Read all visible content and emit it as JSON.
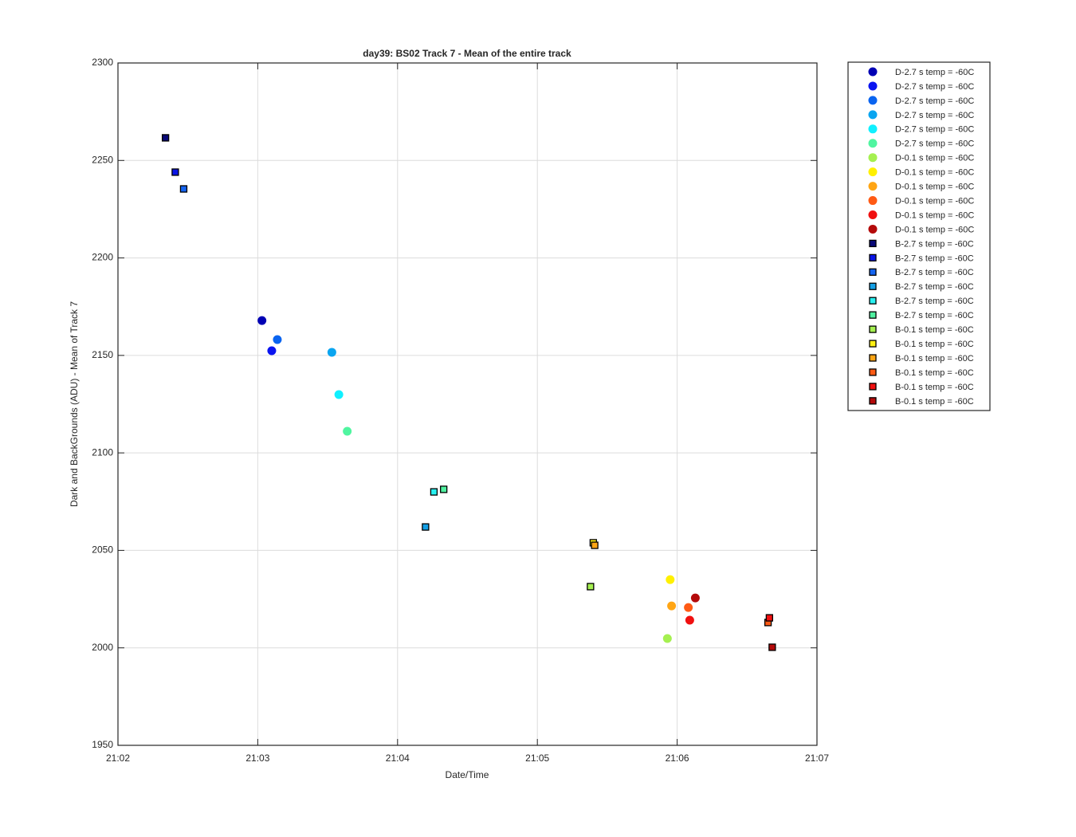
{
  "chart_data": {
    "type": "scatter",
    "title": "day39: BS02  Track 7 - Mean of the entire track",
    "x_label": "Date/Time",
    "y_label": "Dark and BackGrounds (ADU) - Mean of Track 7",
    "xlim": [
      1262,
      1267
    ],
    "xticks": [
      {
        "value": 1262,
        "label": "21:02"
      },
      {
        "value": 1263,
        "label": "21:03"
      },
      {
        "value": 1264,
        "label": "21:04"
      },
      {
        "value": 1265,
        "label": "21:05"
      },
      {
        "value": 1266,
        "label": "21:06"
      },
      {
        "value": 1267,
        "label": "21:07"
      }
    ],
    "ylim": [
      1950,
      2300
    ],
    "yticks": [
      1950,
      2000,
      2050,
      2100,
      2150,
      2200,
      2250,
      2300
    ],
    "grid": true,
    "legend": "outside-right",
    "series": [
      {
        "name": "D-2.7 s temp = -60C",
        "marker": "circle",
        "color": "#0000b4",
        "x": [
          1263.03
        ],
        "values": [
          2167.9
        ]
      },
      {
        "name": "D-2.7 s temp = -60C",
        "marker": "circle",
        "color": "#0a14f0",
        "x": [
          1263.1
        ],
        "values": [
          2152.4
        ]
      },
      {
        "name": "D-2.7 s temp = -60C",
        "marker": "circle",
        "color": "#0a64f0",
        "x": [
          1263.14
        ],
        "values": [
          2158.1
        ]
      },
      {
        "name": "D-2.7 s temp = -60C",
        "marker": "circle",
        "color": "#0aa5f0",
        "x": [
          1263.53
        ],
        "values": [
          2151.6
        ]
      },
      {
        "name": "D-2.7 s temp = -60C",
        "marker": "circle",
        "color": "#10f0ff",
        "x": [
          1263.58
        ],
        "values": [
          2129.9
        ]
      },
      {
        "name": "D-2.7 s temp = -60C",
        "marker": "circle",
        "color": "#50f5a0",
        "x": [
          1263.64
        ],
        "values": [
          2111.1
        ]
      },
      {
        "name": "D-0.1 s temp = -60C",
        "marker": "circle",
        "color": "#a5f050",
        "x": [
          1265.93
        ],
        "values": [
          2004.8
        ]
      },
      {
        "name": "D-0.1 s temp = -60C",
        "marker": "circle",
        "color": "#fff000",
        "x": [
          1265.95
        ],
        "values": [
          2035.0
        ]
      },
      {
        "name": "D-0.1 s temp = -60C",
        "marker": "circle",
        "color": "#ffa514",
        "x": [
          1265.96
        ],
        "values": [
          2021.5
        ]
      },
      {
        "name": "D-0.1 s temp = -60C",
        "marker": "circle",
        "color": "#ff5a14",
        "x": [
          1266.08
        ],
        "values": [
          2020.7
        ]
      },
      {
        "name": "D-0.1 s temp = -60C",
        "marker": "circle",
        "color": "#f01010",
        "x": [
          1266.09
        ],
        "values": [
          2014.2
        ]
      },
      {
        "name": "D-0.1 s temp = -60C",
        "marker": "circle",
        "color": "#b40a0a",
        "x": [
          1266.13
        ],
        "values": [
          2025.6
        ]
      },
      {
        "name": "B-2.7 s temp = -60C",
        "marker": "square",
        "color": "#0a0a78",
        "x": [
          1262.34
        ],
        "values": [
          2261.6
        ]
      },
      {
        "name": "B-2.7 s temp = -60C",
        "marker": "square",
        "color": "#0a14e6",
        "x": [
          1262.41
        ],
        "values": [
          2244.0
        ]
      },
      {
        "name": "B-2.7 s temp = -60C",
        "marker": "square",
        "color": "#1464f0",
        "x": [
          1262.47
        ],
        "values": [
          2235.4
        ]
      },
      {
        "name": "B-2.7 s temp = -60C",
        "marker": "square",
        "color": "#14a0e6",
        "x": [
          1264.2
        ],
        "values": [
          2062.0
        ]
      },
      {
        "name": "B-2.7 s temp = -60C",
        "marker": "square",
        "color": "#28f0f0",
        "x": [
          1264.26
        ],
        "values": [
          2080.0
        ]
      },
      {
        "name": "B-2.7 s temp = -60C",
        "marker": "square",
        "color": "#50f0a0",
        "x": [
          1264.33
        ],
        "values": [
          2081.3
        ]
      },
      {
        "name": "B-0.1 s temp = -60C",
        "marker": "square",
        "color": "#a5f050",
        "x": [
          1265.38
        ],
        "values": [
          2031.4
        ]
      },
      {
        "name": "B-0.1 s temp = -60C",
        "marker": "square",
        "color": "#fff014",
        "x": [
          1265.4
        ],
        "values": [
          2053.9
        ]
      },
      {
        "name": "B-0.1 s temp = -60C",
        "marker": "square",
        "color": "#ffa514",
        "x": [
          1265.41
        ],
        "values": [
          2052.6
        ]
      },
      {
        "name": "B-0.1 s temp = -60C",
        "marker": "square",
        "color": "#ff5a14",
        "x": [
          1266.65
        ],
        "values": [
          2013.0
        ]
      },
      {
        "name": "B-0.1 s temp = -60C",
        "marker": "square",
        "color": "#f01010",
        "x": [
          1266.66
        ],
        "values": [
          2015.4
        ]
      },
      {
        "name": "B-0.1 s temp = -60C",
        "marker": "square",
        "color": "#b40a0a",
        "x": [
          1266.68
        ],
        "values": [
          2000.3
        ]
      }
    ]
  }
}
